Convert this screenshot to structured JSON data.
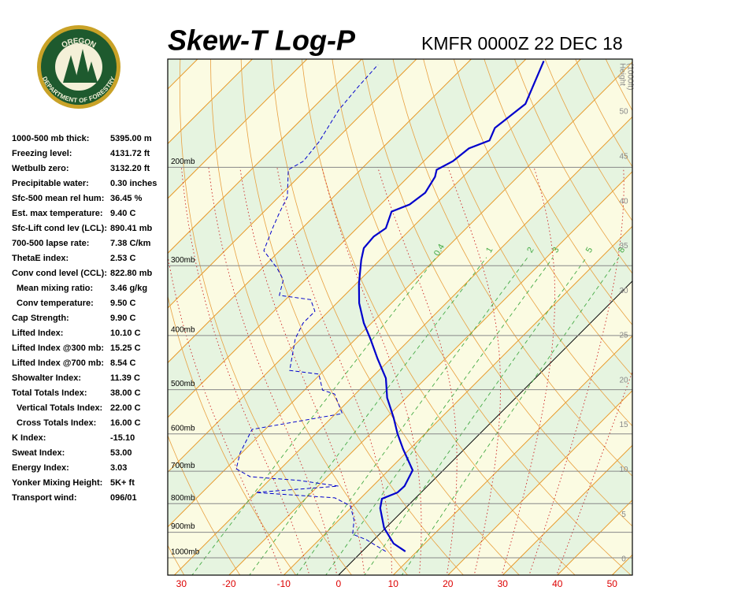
{
  "logo": {
    "top": "OREGON",
    "bottom": "DEPARTMENT OF FORESTRY"
  },
  "stats": {
    "rows": [
      [
        "1000-500 mb thick:",
        "5395.00 m"
      ],
      [
        "Freezing level:",
        "4131.72 ft"
      ],
      [
        "Wetbulb zero:",
        "3132.20 ft"
      ],
      [
        "Precipitable water:",
        "0.30 inches"
      ],
      [
        "Sfc-500 mean rel hum:",
        "36.45 %"
      ],
      [
        "Est. max temperature:",
        "9.40 C"
      ],
      [
        "Sfc-Lift cond lev (LCL):",
        "890.41 mb"
      ],
      [
        "700-500 lapse rate:",
        "7.38 C/km"
      ],
      [
        "ThetaE index:",
        "2.53 C"
      ],
      [
        "Conv cond level (CCL):",
        "822.80 mb"
      ],
      [
        "Mean mixing ratio:",
        "3.46 g/kg"
      ],
      [
        "Conv temperature:",
        "9.50 C"
      ],
      [
        "Cap Strength:",
        "9.90 C"
      ],
      [
        "Lifted Index:",
        "10.10 C"
      ],
      [
        "Lifted Index @300 mb:",
        "15.25 C"
      ],
      [
        "Lifted Index @700 mb:",
        "8.54 C"
      ],
      [
        "Showalter Index:",
        "11.39 C"
      ],
      [
        "Total Totals Index:",
        "38.00 C"
      ],
      [
        "Vertical Totals Index:",
        "22.00 C"
      ],
      [
        "Cross Totals Index:",
        "16.00 C"
      ],
      [
        "K Index:",
        "-15.10"
      ],
      [
        "Sweat Index:",
        "53.00"
      ],
      [
        "Energy Index:",
        "3.03"
      ],
      [
        "Yonker Mixing Height:",
        "5K+ ft"
      ],
      [
        "Transport wind:",
        "096/01"
      ]
    ]
  },
  "chart_data": {
    "type": "skewt",
    "title": "Skew-T Log-P",
    "subtitle": "KMFR 0000Z 22 DEC 18",
    "xlim": [
      -31.2,
      53.7
    ],
    "xticks": [
      {
        "value": -30,
        "label": "30"
      },
      -20,
      -10,
      0,
      10,
      20,
      30,
      40,
      50
    ],
    "ylim": [
      1074,
      128
    ],
    "log_y": true,
    "yticks": [
      {
        "value": 200,
        "label": "200mb"
      },
      {
        "value": 300,
        "label": "300mb"
      },
      {
        "value": 400,
        "label": "400mb"
      },
      {
        "value": 500,
        "label": "500mb"
      },
      {
        "value": 600,
        "label": "600mb"
      },
      {
        "value": 700,
        "label": "700mb"
      },
      {
        "value": 800,
        "label": "800mb"
      },
      {
        "value": 900,
        "label": "900mb"
      },
      {
        "value": 1000,
        "label": "1000mb"
      }
    ],
    "height_label": [
      "Height",
      "(1000ft)"
    ],
    "height_lim": [
      0,
      55.9
    ],
    "height_ticks": [
      0,
      5,
      10,
      15,
      20,
      25,
      30,
      35,
      40,
      45,
      50
    ],
    "mixing_ratio_lines": [
      0.4,
      1,
      2,
      3,
      5,
      8
    ],
    "series": [
      {
        "color": "#0000cc",
        "style": "solid",
        "pressure": [
          974,
          943,
          884,
          815,
          784,
          764,
          744,
          697,
          639,
          599,
          561,
          517,
          477,
          440,
          405,
          380,
          350,
          323,
          293,
          279,
          266,
          257,
          240,
          233,
          222,
          208,
          202,
          195,
          185,
          179,
          170,
          154,
          129
        ],
        "values": [
          7.9,
          4.3,
          -0.3,
          -4.6,
          -6.0,
          -4.3,
          -4.2,
          -5.6,
          -11.2,
          -15.1,
          -18.7,
          -23.5,
          -27.3,
          -32.4,
          -37.4,
          -41.4,
          -45.9,
          -49.5,
          -53.4,
          -55.1,
          -55.4,
          -54.7,
          -56.7,
          -54.7,
          -54.0,
          -55.1,
          -56.1,
          -54.7,
          -54.1,
          -51.8,
          -53.1,
          -51.9,
          -56.4
        ]
      },
      {
        "color": "#0000cc",
        "style": "dashed",
        "pressure": [
          974,
          928,
          907,
          856,
          807,
          781,
          764,
          744,
          727,
          716,
          693,
          649,
          589,
          552,
          509,
          501,
          469,
          462,
          405,
          380,
          362,
          345,
          339,
          318,
          303,
          282,
          257,
          241,
          226,
          202,
          195,
          180,
          158,
          143,
          131
        ],
        "values": [
          4.3,
          -1.4,
          -4.9,
          -7.2,
          -10.5,
          -14.8,
          -30.2,
          -16.3,
          -24.5,
          -34.1,
          -38.1,
          -40.3,
          -42.4,
          -28.8,
          -33.8,
          -36.7,
          -40.3,
          -46.3,
          -51.1,
          -52.5,
          -52.5,
          -55.4,
          -61.9,
          -64.0,
          -67.3,
          -72.9,
          -75.4,
          -77.0,
          -78.4,
          -83.2,
          -82.0,
          -82.7,
          -84.9,
          -85.6,
          -86.0
        ]
      }
    ]
  }
}
